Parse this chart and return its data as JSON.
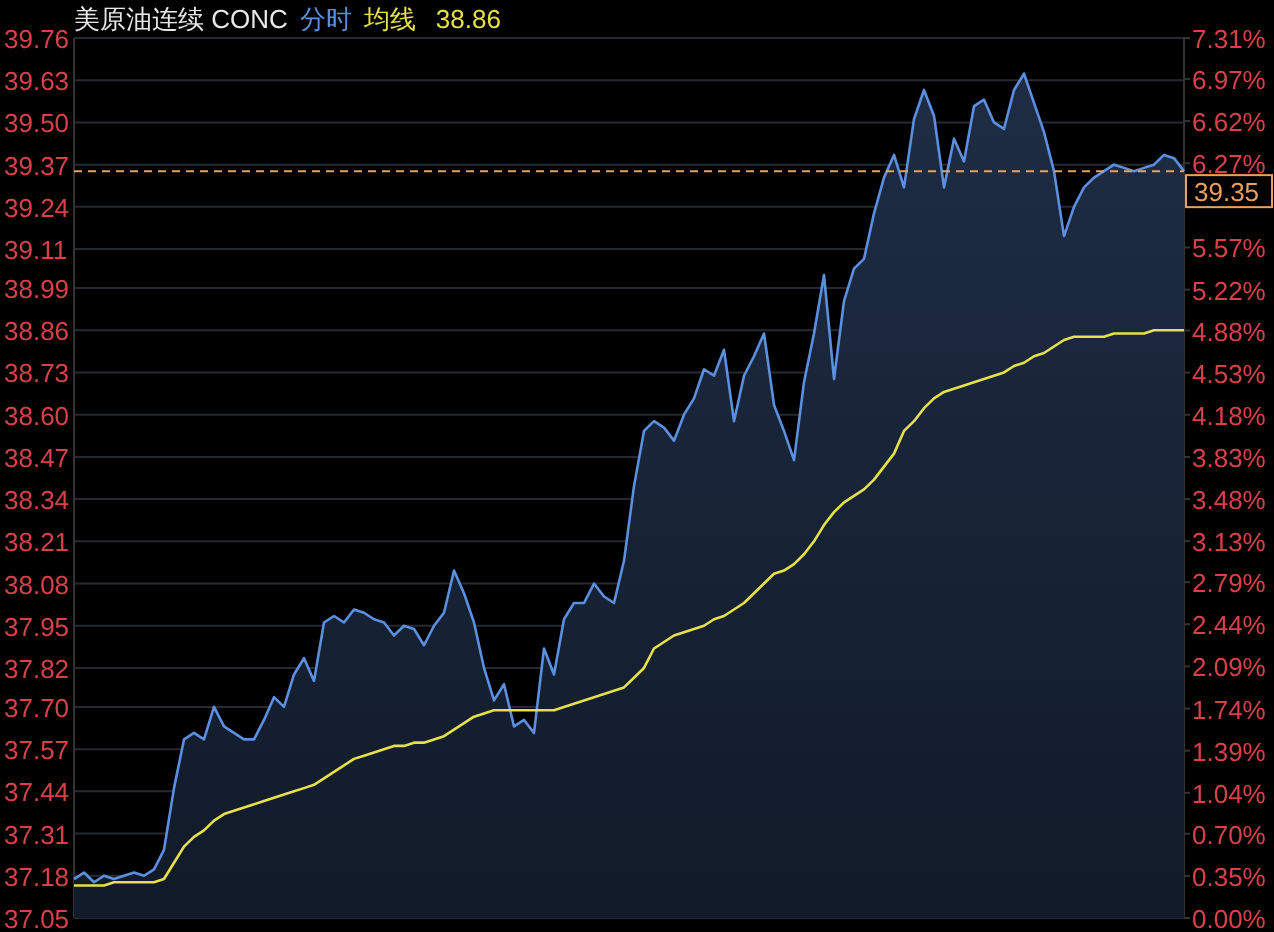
{
  "chart_data": {
    "type": "area",
    "title": "美原油连续 CONC",
    "categories": [
      null,
      null,
      null,
      null,
      null,
      null,
      null,
      null,
      null,
      null,
      null,
      null,
      null,
      null,
      null,
      null,
      null,
      null,
      null,
      null,
      null,
      null,
      null,
      null,
      null,
      null,
      null,
      null,
      null,
      null,
      null,
      null,
      null,
      null,
      null,
      null,
      null,
      null,
      null,
      null,
      null,
      null,
      null,
      null,
      null,
      null,
      null,
      null,
      null,
      null,
      null,
      null,
      null,
      null,
      null,
      null,
      null,
      null,
      null,
      null,
      null,
      null,
      null,
      null,
      null,
      null,
      null,
      null,
      null,
      null,
      null,
      null,
      null,
      null,
      null,
      null,
      null,
      null,
      null,
      null,
      null,
      null,
      null,
      null,
      null,
      null,
      null,
      null,
      null,
      null,
      null,
      null,
      null,
      null,
      null,
      null,
      null,
      null,
      null,
      null,
      null,
      null,
      null,
      null,
      null,
      null,
      null,
      null,
      null,
      null,
      null,
      null
    ],
    "series": [
      {
        "name": "分时",
        "type": "area",
        "color": "#5b8fe0",
        "values": [
          37.17,
          37.19,
          37.16,
          37.18,
          37.17,
          37.18,
          37.19,
          37.18,
          37.2,
          37.26,
          37.45,
          37.6,
          37.62,
          37.6,
          37.7,
          37.64,
          37.62,
          37.6,
          37.6,
          37.66,
          37.73,
          37.7,
          37.8,
          37.85,
          37.78,
          37.96,
          37.98,
          37.96,
          38.0,
          37.99,
          37.97,
          37.96,
          37.92,
          37.95,
          37.94,
          37.89,
          37.95,
          37.99,
          38.12,
          38.05,
          37.96,
          37.82,
          37.72,
          37.77,
          37.64,
          37.66,
          37.62,
          37.88,
          37.8,
          37.97,
          38.02,
          38.02,
          38.08,
          38.04,
          38.02,
          38.15,
          38.38,
          38.55,
          38.58,
          38.56,
          38.52,
          38.6,
          38.65,
          38.74,
          38.72,
          38.8,
          38.58,
          38.72,
          38.78,
          38.85,
          38.63,
          38.55,
          38.46,
          38.7,
          38.85,
          39.03,
          38.71,
          38.95,
          39.05,
          39.08,
          39.22,
          39.33,
          39.4,
          39.3,
          39.51,
          39.6,
          39.52,
          39.3,
          39.45,
          39.38,
          39.55,
          39.57,
          39.5,
          39.48,
          39.6,
          39.65,
          39.56,
          39.47,
          39.35,
          39.15,
          39.24,
          39.3,
          39.33,
          39.35,
          39.37,
          39.36,
          39.35,
          39.36,
          39.37,
          39.4,
          39.39,
          39.35
        ]
      },
      {
        "name": "均线",
        "type": "line",
        "color": "#e6e04a",
        "values": [
          37.15,
          37.15,
          37.15,
          37.15,
          37.16,
          37.16,
          37.16,
          37.16,
          37.16,
          37.17,
          37.22,
          37.27,
          37.3,
          37.32,
          37.35,
          37.37,
          37.38,
          37.39,
          37.4,
          37.41,
          37.42,
          37.43,
          37.44,
          37.45,
          37.46,
          37.48,
          37.5,
          37.52,
          37.54,
          37.55,
          37.56,
          37.57,
          37.58,
          37.58,
          37.59,
          37.59,
          37.6,
          37.61,
          37.63,
          37.65,
          37.67,
          37.68,
          37.69,
          37.69,
          37.69,
          37.69,
          37.69,
          37.69,
          37.69,
          37.7,
          37.71,
          37.72,
          37.73,
          37.74,
          37.75,
          37.76,
          37.79,
          37.82,
          37.88,
          37.9,
          37.92,
          37.93,
          37.94,
          37.95,
          37.97,
          37.98,
          38.0,
          38.02,
          38.05,
          38.08,
          38.11,
          38.12,
          38.14,
          38.17,
          38.21,
          38.26,
          38.3,
          38.33,
          38.35,
          38.37,
          38.4,
          38.44,
          38.48,
          38.55,
          38.58,
          38.62,
          38.65,
          38.67,
          38.68,
          38.69,
          38.7,
          38.71,
          38.72,
          38.73,
          38.75,
          38.76,
          38.78,
          38.79,
          38.81,
          38.83,
          38.84,
          38.84,
          38.84,
          38.84,
          38.85,
          38.85,
          38.85,
          38.85,
          38.86,
          38.86,
          38.86,
          38.86
        ]
      }
    ],
    "annotations": [
      "38.86"
    ],
    "legend": "top",
    "ylim": [
      37.05,
      39.76
    ],
    "yticks": [
      39.76,
      39.63,
      {
        "value": 39.5,
        "label": "39.50"
      },
      39.37,
      39.24,
      39.11,
      38.99,
      38.86,
      38.73,
      {
        "value": 38.6,
        "label": "38.60"
      },
      38.47,
      38.34,
      38.21,
      38.08,
      37.95,
      37.82,
      {
        "value": 37.7,
        "label": "37.70"
      },
      37.57,
      37.44,
      37.31,
      37.18,
      37.05
    ],
    "y2lim": [
      0,
      7.31
    ],
    "y2ticks": [
      {
        "value": 7.31,
        "label": "7.31%"
      },
      {
        "value": 6.97,
        "label": "6.97%"
      },
      {
        "value": 6.62,
        "label": "6.62%"
      },
      {
        "value": 6.27,
        "label": "6.27%"
      },
      {
        "value": 5.92,
        "label": null
      },
      {
        "value": 5.57,
        "label": "5.57%"
      },
      {
        "value": 5.22,
        "label": "5.22%"
      },
      {
        "value": 4.88,
        "label": "4.88%"
      },
      {
        "value": 4.53,
        "label": "4.53%"
      },
      {
        "value": 4.18,
        "label": "4.18%"
      },
      {
        "value": 3.83,
        "label": "3.83%"
      },
      {
        "value": 3.48,
        "label": "3.48%"
      },
      {
        "value": 3.13,
        "label": "3.13%"
      },
      {
        "value": 2.79,
        "label": "2.79%"
      },
      {
        "value": 2.44,
        "label": "2.44%"
      },
      {
        "value": 2.09,
        "label": "2.09%"
      },
      {
        "value": 1.74,
        "label": "1.74%"
      },
      {
        "value": 1.39,
        "label": "1.39%"
      },
      {
        "value": 1.04,
        "label": "1.04%"
      },
      {
        "value": 0.7,
        "label": "0.70%"
      },
      {
        "value": 0.35,
        "label": "0.35%"
      },
      {
        "value": 0,
        "label": "0.00%"
      }
    ],
    "ref_lines": [
      {
        "axis": "y",
        "value": 39.35,
        "label": "39.35",
        "color": "#e8a060",
        "line_style": "dashed"
      }
    ],
    "grid": "y"
  }
}
